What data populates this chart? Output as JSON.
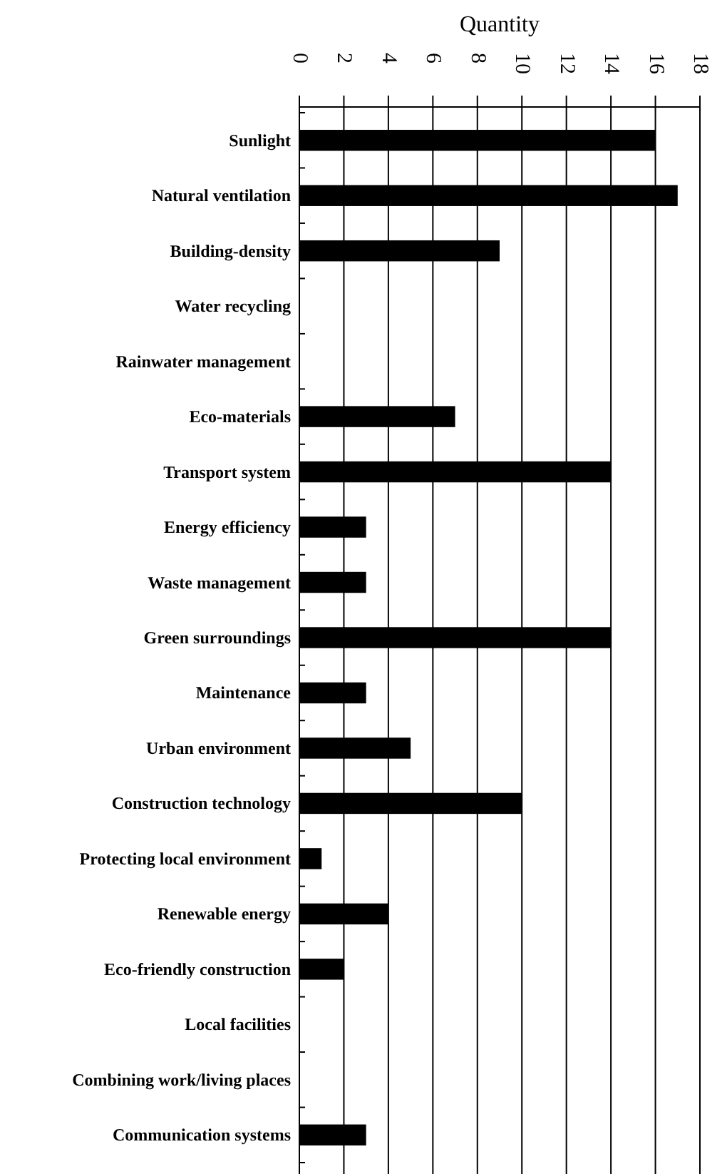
{
  "chart_data": {
    "type": "bar",
    "orientation": "horizontal",
    "xlabel": "Quantity",
    "categories": [
      "Sunlight",
      "Natural ventilation",
      "Building-density",
      "Water recycling",
      "Rainwater management",
      "Eco-materials",
      "Transport system",
      "Energy efficiency",
      "Waste management",
      "Green surroundings",
      "Maintenance",
      "Urban environment",
      "Construction technology",
      "Protecting local environment",
      "Renewable energy",
      "Eco-friendly construction",
      "Local facilities",
      "Combining work/living places",
      "Communication systems"
    ],
    "values": [
      16,
      17,
      9,
      0,
      0,
      7,
      14,
      3,
      3,
      14,
      3,
      5,
      10,
      1,
      4,
      2,
      0,
      0,
      3
    ],
    "color": "#000000",
    "xlim": [
      0,
      18
    ],
    "xticks": [
      0,
      2,
      4,
      6,
      8,
      10,
      12,
      14,
      16,
      18
    ],
    "grid": "x"
  }
}
